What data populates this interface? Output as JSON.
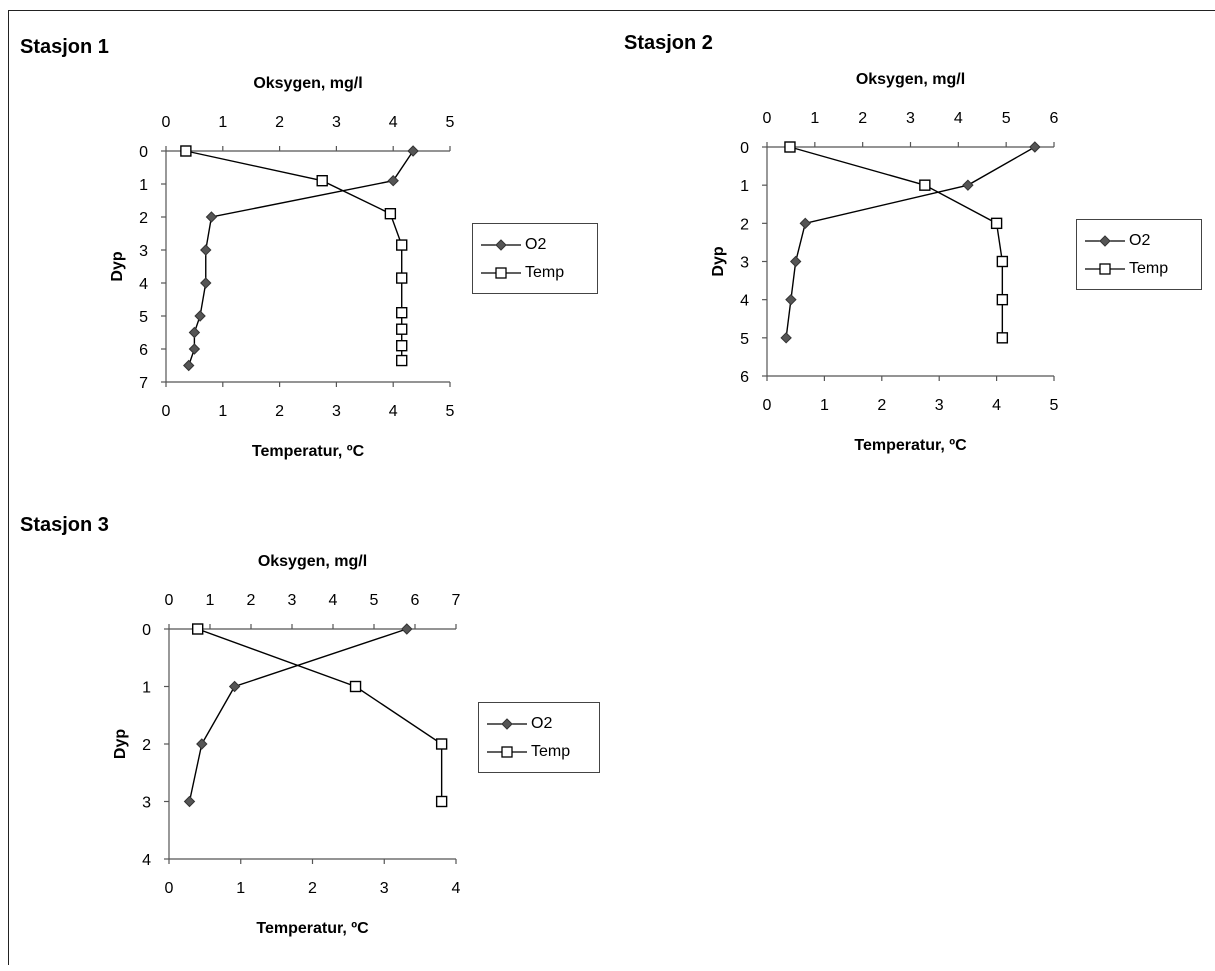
{
  "chart_data": [
    {
      "type": "line",
      "title": "Stasjon 1",
      "x_top_label": "Oksygen, mg/l",
      "x_bottom_label": "Temperatur, ºC",
      "ylabel": "Dyp",
      "x_top_range": [
        0,
        5
      ],
      "x_bottom_range": [
        0,
        5
      ],
      "y_range": [
        0,
        7
      ],
      "x_top_ticks": [
        "0",
        "1",
        "2",
        "3",
        "4",
        "5"
      ],
      "x_bottom_ticks": [
        "0",
        "1",
        "2",
        "3",
        "4",
        "5"
      ],
      "y_ticks": [
        "0",
        "1",
        "2",
        "3",
        "4",
        "5",
        "6",
        "7"
      ],
      "legend_position": "right",
      "series": [
        {
          "name": "O2",
          "axis": "top",
          "marker": "diamond",
          "x": [
            4.35,
            4.0,
            0.8,
            0.7,
            0.7,
            0.6,
            0.5,
            0.5,
            0.4
          ],
          "y": [
            0,
            0.9,
            2.0,
            3.0,
            4.0,
            5.0,
            5.5,
            6.0,
            6.5
          ]
        },
        {
          "name": "Temp",
          "axis": "bottom",
          "marker": "square",
          "x": [
            0.35,
            2.75,
            3.95,
            4.15,
            4.15,
            4.15,
            4.15,
            4.15,
            4.15
          ],
          "y": [
            0,
            0.9,
            1.9,
            2.85,
            3.85,
            4.9,
            5.4,
            5.9,
            6.35
          ]
        }
      ]
    },
    {
      "type": "line",
      "title": "Stasjon 2",
      "x_top_label": "Oksygen, mg/l",
      "x_bottom_label": "Temperatur, ºC",
      "ylabel": "Dyp",
      "x_top_range": [
        0,
        6
      ],
      "x_bottom_range": [
        0,
        5
      ],
      "y_range": [
        0,
        6
      ],
      "x_top_ticks": [
        "0",
        "1",
        "2",
        "3",
        "4",
        "5",
        "6"
      ],
      "x_bottom_ticks": [
        "0",
        "1",
        "2",
        "3",
        "4",
        "5"
      ],
      "y_ticks": [
        "0",
        "1",
        "2",
        "3",
        "4",
        "5",
        "6"
      ],
      "legend_position": "right",
      "series": [
        {
          "name": "O2",
          "axis": "top",
          "marker": "diamond",
          "x": [
            5.6,
            4.2,
            0.8,
            0.6,
            0.5,
            0.4
          ],
          "y": [
            0,
            1,
            2,
            3,
            4,
            5
          ]
        },
        {
          "name": "Temp",
          "axis": "bottom",
          "marker": "square",
          "x": [
            0.4,
            2.75,
            4.0,
            4.1,
            4.1,
            4.1
          ],
          "y": [
            0,
            1,
            2,
            3,
            4,
            5
          ]
        }
      ]
    },
    {
      "type": "line",
      "title": "Stasjon 3",
      "x_top_label": "Oksygen, mg/l",
      "x_bottom_label": "Temperatur, ºC",
      "ylabel": "Dyp",
      "x_top_range": [
        0,
        7
      ],
      "x_bottom_range": [
        0,
        4
      ],
      "y_range": [
        0,
        4
      ],
      "x_top_ticks": [
        "0",
        "1",
        "2",
        "3",
        "4",
        "5",
        "6",
        "7"
      ],
      "x_bottom_ticks": [
        "0",
        "1",
        "2",
        "3",
        "4"
      ],
      "y_ticks": [
        "0",
        "1",
        "2",
        "3",
        "4"
      ],
      "legend_position": "right",
      "series": [
        {
          "name": "O2",
          "axis": "top",
          "marker": "diamond",
          "x": [
            5.8,
            1.6,
            0.8,
            0.5
          ],
          "y": [
            0,
            1,
            2,
            3
          ]
        },
        {
          "name": "Temp",
          "axis": "bottom",
          "marker": "square",
          "x": [
            0.4,
            2.6,
            3.8,
            3.8
          ],
          "y": [
            0,
            1,
            2,
            3
          ]
        }
      ]
    }
  ]
}
